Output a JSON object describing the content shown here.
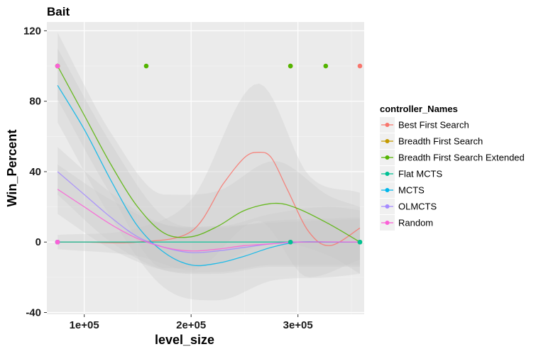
{
  "chart_data": {
    "type": "scatter",
    "title": "Bait",
    "xlabel": "level_size",
    "ylabel": "Win_Percent",
    "xlim": [
      65000,
      362000
    ],
    "ylim": [
      -41,
      125
    ],
    "x_ticks": [
      {
        "value": 100000,
        "label": "1e+05"
      },
      {
        "value": 200000,
        "label": "2e+05"
      },
      {
        "value": 300000,
        "label": "3e+05"
      }
    ],
    "y_ticks": [
      {
        "value": -40,
        "label": "-40"
      },
      {
        "value": 0,
        "label": "0"
      },
      {
        "value": 40,
        "label": "40"
      },
      {
        "value": 80,
        "label": "80"
      },
      {
        "value": 120,
        "label": "120"
      }
    ],
    "grid": true,
    "background": "#EBEBEB",
    "band_color": "#C8C8C8",
    "legend": {
      "title": "controller_Names",
      "position": "right"
    },
    "series": [
      {
        "name": "Best First Search",
        "color": "#F8766D",
        "points": [
          [
            75000,
            0
          ],
          [
            75000,
            0
          ],
          [
            293000,
            0
          ],
          [
            358000,
            100
          ]
        ],
        "curve": [
          [
            75000,
            0
          ],
          [
            100000,
            0
          ],
          [
            150000,
            0
          ],
          [
            200000,
            6
          ],
          [
            230000,
            33
          ],
          [
            250000,
            48
          ],
          [
            263000,
            51
          ],
          [
            275000,
            48
          ],
          [
            290000,
            30
          ],
          [
            310000,
            6
          ],
          [
            330000,
            -2
          ],
          [
            358000,
            8
          ]
        ],
        "band": [
          [
            75000,
            -4,
            4
          ],
          [
            150000,
            -8,
            8
          ],
          [
            200000,
            -16,
            24
          ],
          [
            263000,
            12,
            90
          ],
          [
            310000,
            -20,
            38
          ],
          [
            358000,
            -10,
            28
          ]
        ]
      },
      {
        "name": "Breadth First Search",
        "color": "#C49A00",
        "points": [
          [
            75000,
            100
          ],
          [
            293000,
            100
          ]
        ],
        "curve": [],
        "band": []
      },
      {
        "name": "Breadth First Search Extended",
        "color": "#53B400",
        "points": [
          [
            75000,
            100
          ],
          [
            158000,
            100
          ],
          [
            293000,
            100
          ],
          [
            326000,
            100
          ],
          [
            358000,
            0
          ]
        ],
        "curve": [
          [
            75000,
            100
          ],
          [
            100000,
            72
          ],
          [
            125000,
            44
          ],
          [
            150000,
            20
          ],
          [
            175000,
            5
          ],
          [
            200000,
            3
          ],
          [
            225000,
            9
          ],
          [
            250000,
            18
          ],
          [
            278000,
            22
          ],
          [
            300000,
            19
          ],
          [
            330000,
            10
          ],
          [
            358000,
            0
          ]
        ],
        "band": [
          [
            75000,
            81,
            119
          ],
          [
            125000,
            27,
            62
          ],
          [
            175000,
            -15,
            27
          ],
          [
            225000,
            -12,
            29
          ],
          [
            278000,
            0,
            46
          ],
          [
            330000,
            -8,
            26
          ],
          [
            358000,
            -18,
            20
          ]
        ]
      },
      {
        "name": "Flat MCTS",
        "color": "#00C094",
        "points": [
          [
            75000,
            0
          ],
          [
            293000,
            0
          ],
          [
            358000,
            0
          ]
        ],
        "curve": [
          [
            75000,
            0
          ],
          [
            358000,
            0
          ]
        ],
        "band": []
      },
      {
        "name": "MCTS",
        "color": "#00B6EB",
        "points": [
          [
            75000,
            0
          ]
        ],
        "curve": [
          [
            75000,
            89
          ],
          [
            100000,
            64
          ],
          [
            125000,
            35
          ],
          [
            150000,
            9
          ],
          [
            175000,
            -6
          ],
          [
            200000,
            -13
          ],
          [
            225000,
            -12
          ],
          [
            250000,
            -8
          ],
          [
            275000,
            -3
          ],
          [
            300000,
            0
          ],
          [
            330000,
            0
          ],
          [
            358000,
            0
          ]
        ],
        "band": [
          [
            75000,
            68,
            110
          ],
          [
            125000,
            14,
            56
          ],
          [
            175000,
            -26,
            14
          ],
          [
            225000,
            -33,
            9
          ],
          [
            275000,
            -22,
            16
          ],
          [
            330000,
            -20,
            20
          ],
          [
            358000,
            -18,
            18
          ]
        ]
      },
      {
        "name": "OLMCTS",
        "color": "#A58AFF",
        "points": [
          [
            75000,
            0
          ]
        ],
        "curve": [
          [
            75000,
            40
          ],
          [
            100000,
            27
          ],
          [
            125000,
            14
          ],
          [
            150000,
            3
          ],
          [
            175000,
            -3
          ],
          [
            200000,
            -6
          ],
          [
            225000,
            -5
          ],
          [
            250000,
            -3
          ],
          [
            275000,
            -1
          ],
          [
            300000,
            0
          ],
          [
            358000,
            0
          ]
        ],
        "band": [
          [
            75000,
            27,
            54
          ],
          [
            125000,
            0,
            28
          ],
          [
            175000,
            -16,
            10
          ],
          [
            225000,
            -18,
            8
          ],
          [
            275000,
            -14,
            12
          ],
          [
            358000,
            -14,
            14
          ]
        ]
      },
      {
        "name": "Random",
        "color": "#FB61D7",
        "points": [
          [
            75000,
            100
          ],
          [
            75000,
            0
          ]
        ],
        "curve": [
          [
            75000,
            30
          ],
          [
            100000,
            20
          ],
          [
            125000,
            10
          ],
          [
            150000,
            2
          ],
          [
            175000,
            -3
          ],
          [
            200000,
            -5
          ],
          [
            225000,
            -4
          ],
          [
            250000,
            -2
          ],
          [
            275000,
            -1
          ],
          [
            300000,
            0
          ],
          [
            358000,
            0
          ]
        ],
        "band": [
          [
            75000,
            16,
            44
          ],
          [
            125000,
            -4,
            24
          ],
          [
            175000,
            -16,
            10
          ],
          [
            225000,
            -17,
            9
          ],
          [
            275000,
            -13,
            11
          ],
          [
            358000,
            -13,
            13
          ]
        ]
      }
    ]
  }
}
